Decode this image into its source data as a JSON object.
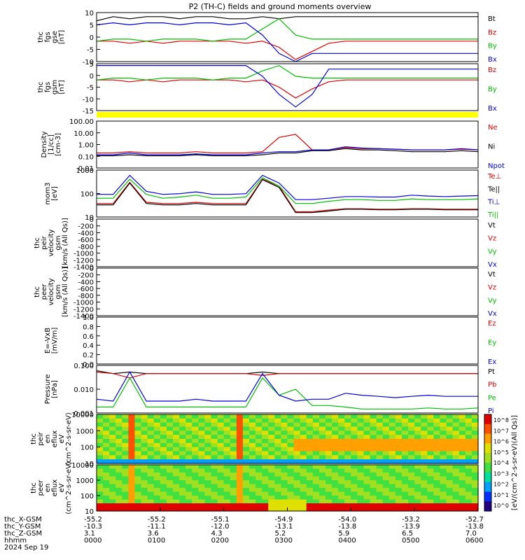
{
  "title": "P2 (TH-C) fields and ground moments overview",
  "colors": {
    "black": "#000000",
    "red": "#e00000",
    "green": "#00c000",
    "blue": "#0000e0",
    "yellow": "#ffff00"
  },
  "chart_data": [
    {
      "type": "line",
      "panel": "fgs_gse",
      "ylabel_lines": [
        "thc",
        "fgs",
        "gse",
        "[nT]"
      ],
      "yticks": [
        "10",
        "5",
        "0",
        "-5",
        "-10"
      ],
      "ylim": [
        -10,
        14
      ],
      "series": [
        {
          "name": "Bt",
          "color": "black",
          "values": [
            10,
            12,
            11,
            12,
            12,
            11,
            12,
            12,
            11,
            11,
            12,
            11,
            12,
            12,
            12,
            12,
            12,
            12,
            12,
            12,
            12,
            12,
            12,
            12
          ]
        },
        {
          "name": "Bz",
          "color": "red",
          "values": [
            0,
            0,
            -1,
            0,
            -1,
            0,
            0,
            0,
            0,
            -1,
            0,
            -3,
            -9,
            -5,
            -1,
            0,
            0,
            0,
            0,
            0,
            0,
            0,
            0,
            0
          ]
        },
        {
          "name": "By",
          "color": "green",
          "values": [
            0,
            1,
            1,
            0,
            1,
            1,
            1,
            0,
            1,
            1,
            6,
            11,
            3,
            1,
            1,
            1,
            1,
            1,
            1,
            1,
            1,
            1,
            1,
            1
          ]
        },
        {
          "name": "Bx",
          "color": "blue",
          "values": [
            8,
            9,
            8,
            9,
            9,
            8,
            9,
            9,
            8,
            9,
            3,
            -6,
            -10,
            -6,
            -6,
            -6,
            -6,
            -6,
            -6,
            -6,
            -6,
            -6,
            -6,
            -6
          ]
        }
      ]
    },
    {
      "type": "line",
      "panel": "fgs_gsm",
      "ylabel_lines": [
        "thc",
        "fgs",
        "gsm",
        "[nT]"
      ],
      "yticks": [
        "5",
        "0",
        "-5",
        "-10",
        "-15"
      ],
      "ylim": [
        -17,
        9
      ],
      "series": [
        {
          "name": "Bz",
          "color": "red",
          "values": [
            0,
            0,
            -1,
            0,
            -1,
            0,
            0,
            0,
            0,
            -1,
            0,
            -4,
            -10,
            -5,
            -1,
            0,
            0,
            0,
            0,
            0,
            0,
            0,
            0,
            0
          ]
        },
        {
          "name": "By",
          "color": "green",
          "values": [
            0,
            1,
            1,
            0,
            1,
            1,
            1,
            0,
            1,
            1,
            5,
            8,
            2,
            1,
            1,
            1,
            1,
            1,
            1,
            1,
            1,
            1,
            1,
            1
          ]
        },
        {
          "name": "Bx",
          "color": "blue",
          "values": [
            8,
            8,
            8,
            8,
            8,
            8,
            8,
            8,
            8,
            8,
            2,
            -8,
            -15,
            -8,
            6,
            6,
            6,
            6,
            6,
            6,
            6,
            6,
            6,
            6
          ]
        }
      ]
    },
    {
      "type": "line",
      "panel": "density",
      "log": true,
      "ylabel_lines": [
        "Density",
        "[1/cc]",
        "[cm-3]"
      ],
      "yticks": [
        "100.00",
        "10.00",
        "1.00",
        "0.10",
        "0.01"
      ],
      "ylim": [
        0.005,
        200
      ],
      "series": [
        {
          "name": "Ne",
          "color": "red",
          "values": [
            0.15,
            0.15,
            0.2,
            0.15,
            0.15,
            0.15,
            0.2,
            0.15,
            0.15,
            0.15,
            0.2,
            5,
            10,
            0.3,
            0.3,
            0.5,
            0.4,
            0.4,
            0.35,
            0.3,
            0.3,
            0.3,
            0.35,
            0.3
          ]
        },
        {
          "name": "Ni",
          "color": "black",
          "values": [
            0.08,
            0.08,
            0.1,
            0.08,
            0.08,
            0.08,
            0.1,
            0.08,
            0.08,
            0.08,
            0.1,
            0.15,
            0.15,
            0.25,
            0.25,
            0.4,
            0.3,
            0.3,
            0.25,
            0.2,
            0.2,
            0.2,
            0.25,
            0.2
          ]
        },
        {
          "name": "Npot",
          "color": "blue",
          "values": [
            0.1,
            0.1,
            0.15,
            0.1,
            0.1,
            0.1,
            0.12,
            0.1,
            0.1,
            0.1,
            0.15,
            0.2,
            0.2,
            0.3,
            0.3,
            0.6,
            0.45,
            0.4,
            0.35,
            0.3,
            0.3,
            0.3,
            0.4,
            0.3
          ]
        }
      ]
    },
    {
      "type": "line",
      "panel": "moments_temp",
      "log": true,
      "ylabel_lines": [
        "mom3",
        "[eV]"
      ],
      "yticks": [
        "1000",
        "100",
        "10"
      ],
      "ylim": [
        10,
        5000
      ],
      "series": [
        {
          "name": "Te⊥",
          "color": "red",
          "values": [
            60,
            60,
            1000,
            70,
            60,
            60,
            70,
            60,
            60,
            60,
            1500,
            600,
            20,
            20,
            25,
            30,
            30,
            28,
            28,
            30,
            30,
            28,
            28,
            28
          ]
        },
        {
          "name": "Te||",
          "color": "black",
          "values": [
            50,
            50,
            900,
            60,
            50,
            50,
            60,
            50,
            50,
            50,
            1400,
            500,
            18,
            18,
            22,
            28,
            28,
            26,
            26,
            28,
            28,
            26,
            26,
            26
          ]
        },
        {
          "name": "Ti⊥",
          "color": "blue",
          "values": [
            200,
            200,
            2500,
            300,
            200,
            220,
            280,
            200,
            200,
            220,
            2500,
            900,
            100,
            100,
            120,
            150,
            150,
            140,
            140,
            180,
            160,
            150,
            160,
            170
          ]
        },
        {
          "name": "Ti||",
          "color": "green",
          "values": [
            120,
            120,
            1500,
            200,
            120,
            140,
            180,
            120,
            120,
            140,
            1800,
            600,
            60,
            60,
            80,
            100,
            100,
            90,
            90,
            110,
            100,
            100,
            100,
            110
          ]
        }
      ]
    },
    {
      "type": "line",
      "panel": "peir_velocity",
      "ylabel_lines": [
        "thc",
        "peir",
        "velocity",
        "gsm",
        "[km/s (All Qs)]"
      ],
      "yticks": [
        "0",
        "-200",
        "-400",
        "-600",
        "-800",
        "-1000",
        "-1200",
        "-1400"
      ],
      "ylim": [
        -1400,
        0
      ],
      "series": [
        {
          "name": "Vt",
          "color": "black",
          "values": []
        },
        {
          "name": "Vz",
          "color": "red",
          "values": []
        },
        {
          "name": "Vy",
          "color": "green",
          "values": []
        },
        {
          "name": "Vx",
          "color": "blue",
          "values": []
        }
      ]
    },
    {
      "type": "line",
      "panel": "peer_velocity",
      "ylabel_lines": [
        "thc",
        "peer",
        "velocity",
        "gsm",
        "[km/s (All Qs)]"
      ],
      "yticks": [
        "0",
        "-200",
        "-400",
        "-600",
        "-800",
        "-1000",
        "-1200",
        "-1400"
      ],
      "ylim": [
        -1400,
        0
      ],
      "series": [
        {
          "name": "Vt",
          "color": "black",
          "values": []
        },
        {
          "name": "Vz",
          "color": "red",
          "values": []
        },
        {
          "name": "Vy",
          "color": "green",
          "values": []
        },
        {
          "name": "Vx",
          "color": "blue",
          "values": []
        }
      ]
    },
    {
      "type": "line",
      "panel": "efield",
      "ylabel_lines": [
        "E=-VxB",
        "[mV/m]"
      ],
      "yticks": [
        "1.0",
        "0.8",
        "0.6",
        "0.4",
        "0.2",
        "0.0"
      ],
      "ylim": [
        0,
        1
      ],
      "series": [
        {
          "name": "Ez",
          "color": "red",
          "values": []
        },
        {
          "name": "Ey",
          "color": "green",
          "values": []
        },
        {
          "name": "Ex",
          "color": "blue",
          "values": []
        }
      ]
    },
    {
      "type": "line",
      "panel": "pressure",
      "log": true,
      "ylabel_lines": [
        "Pressure",
        "[nPa]"
      ],
      "yticks": [
        "0.100",
        "0.010",
        "0.001"
      ],
      "ylim": [
        0.0005,
        0.13
      ],
      "series": [
        {
          "name": "Pt",
          "color": "black",
          "values": [
            0.07,
            0.05,
            0.06,
            0.05,
            0.05,
            0.05,
            0.05,
            0.05,
            0.05,
            0.05,
            0.06,
            0.05,
            0.05,
            0.05,
            0.05,
            0.05,
            0.05,
            0.05,
            0.05,
            0.05,
            0.05,
            0.05,
            0.05,
            0.05
          ]
        },
        {
          "name": "Pb",
          "color": "red",
          "values": [
            0.06,
            0.05,
            0.03,
            0.05,
            0.05,
            0.05,
            0.05,
            0.05,
            0.05,
            0.05,
            0.04,
            0.05,
            0.05,
            0.05,
            0.05,
            0.05,
            0.05,
            0.05,
            0.05,
            0.05,
            0.05,
            0.05,
            0.05,
            0.05
          ]
        },
        {
          "name": "Pe",
          "color": "green",
          "values": [
            0.001,
            0.001,
            0.03,
            0.001,
            0.001,
            0.001,
            0.001,
            0.001,
            0.001,
            0.001,
            0.03,
            0.004,
            0.008,
            0.0012,
            0.0012,
            0.001,
            0.0008,
            0.0008,
            0.0008,
            0.0008,
            0.0009,
            0.0008,
            0.0008,
            0.0009
          ]
        },
        {
          "name": "Pi",
          "color": "blue",
          "values": [
            0.0025,
            0.002,
            0.06,
            0.002,
            0.002,
            0.002,
            0.0025,
            0.002,
            0.002,
            0.002,
            0.05,
            0.004,
            0.002,
            0.0025,
            0.0025,
            0.005,
            0.004,
            0.0035,
            0.003,
            0.0035,
            0.004,
            0.0035,
            0.0035,
            0.0035
          ]
        }
      ]
    },
    {
      "type": "heatmap",
      "panel": "peir_en_eflux",
      "ylabel_lines": [
        "thc",
        "peir",
        "en",
        "eflux",
        "eV",
        "(cm^2-s-sr-eV)"
      ],
      "yticks": [
        "10000",
        "1000",
        "100",
        "10"
      ]
    },
    {
      "type": "heatmap",
      "panel": "peer_en_eflux",
      "ylabel_lines": [
        "thc",
        "peer",
        "en",
        "eflux",
        "eV",
        "(cm^2-s-sr-eV)"
      ],
      "yticks": [
        "10000",
        "1000",
        "100",
        "10"
      ]
    }
  ],
  "colorbar": {
    "label": "[eV/(cm^2-s-sr-eV)(All Qs)]",
    "ticks": [
      "10^8",
      "10^7",
      "10^6",
      "10^5",
      "10^4",
      "10^3",
      "10^2",
      "10^1",
      "10^0"
    ]
  },
  "xaxis": {
    "row_labels": [
      "thc_X-GSM",
      "thc_Y-GSM",
      "thc_Z-GSM",
      "hhmm",
      "2024 Sep 19"
    ],
    "ticks": [
      {
        "x": "-55.2",
        "y": "-10.3",
        "z": "3.1",
        "hhmm": "0000"
      },
      {
        "x": "-55.2",
        "y": "-11.1",
        "z": "3.6",
        "hhmm": "0100"
      },
      {
        "x": "-55.1",
        "y": "-12.0",
        "z": "4.3",
        "hhmm": "0200"
      },
      {
        "x": "-54.9",
        "y": "-13.1",
        "z": "5.2",
        "hhmm": "0300"
      },
      {
        "x": "-54.0",
        "y": "-13.8",
        "z": "5.9",
        "hhmm": "0400"
      },
      {
        "x": "-53.2",
        "y": "-13.9",
        "z": "6.5",
        "hhmm": "0500"
      },
      {
        "x": "-52.7",
        "y": "-13.8",
        "z": "7.0",
        "hhmm": "0600"
      }
    ]
  }
}
